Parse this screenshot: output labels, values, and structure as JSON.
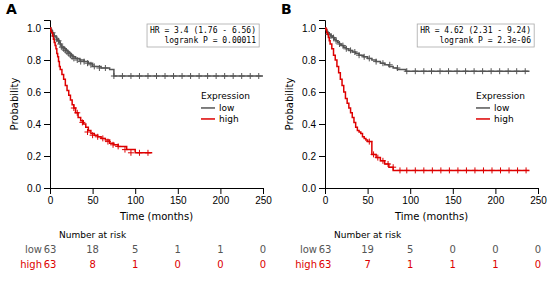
{
  "chart_data": [
    {
      "type": "step",
      "title": "A",
      "x_label": "Time (months)",
      "y_label": "Probability",
      "annotations": [
        "HR = 3.4 (1.76 - 6.56)",
        "logrank P = 0.00011"
      ],
      "legend": "right",
      "legend_title": "Expression",
      "grid": false,
      "xlim": [
        0,
        250
      ],
      "ylim": [
        0.0,
        1.05
      ],
      "xticks": [
        0,
        50,
        100,
        150,
        200,
        250
      ],
      "yticks": [
        {
          "value": 0.0,
          "label": "0.0"
        },
        0.2,
        0.4,
        0.6,
        0.8,
        {
          "value": 1.0,
          "label": "1.0"
        }
      ],
      "series": [
        {
          "name": "low",
          "color": "#555555",
          "x": [
            0,
            1,
            2,
            3,
            4,
            5,
            6,
            7,
            8,
            9,
            10,
            11,
            12,
            13,
            14,
            15,
            17,
            19,
            21,
            23,
            25,
            27,
            30,
            35,
            40,
            45,
            50,
            55,
            60,
            65,
            70,
            75,
            80,
            85,
            90,
            95,
            100,
            105,
            110,
            115,
            120,
            130,
            140,
            150,
            160,
            170,
            180,
            190,
            200,
            210,
            220,
            230,
            240,
            250
          ],
          "values": [
            1.0,
            0.99,
            0.98,
            0.97,
            0.96,
            0.95,
            0.95,
            0.94,
            0.93,
            0.92,
            0.92,
            0.91,
            0.9,
            0.89,
            0.88,
            0.88,
            0.87,
            0.86,
            0.85,
            0.84,
            0.83,
            0.82,
            0.81,
            0.8,
            0.79,
            0.78,
            0.76,
            0.76,
            0.75,
            0.75,
            0.74,
            0.7,
            0.7,
            0.7,
            0.7,
            0.7,
            0.7,
            0.7,
            0.7,
            0.7,
            0.7,
            0.7,
            0.7,
            0.7,
            0.7,
            0.7,
            0.7,
            0.7,
            0.7,
            0.7,
            0.7,
            0.7,
            0.7,
            0.7
          ],
          "censor_x": [
            3,
            5,
            8,
            10,
            12,
            14,
            16,
            18,
            20,
            22,
            24,
            26,
            28,
            32,
            36,
            40,
            44,
            48,
            52,
            58,
            65,
            75,
            85,
            95,
            105,
            115,
            125,
            135,
            145,
            155,
            165,
            175,
            185,
            195,
            205,
            215,
            225,
            235,
            245
          ],
          "censor_values": [
            0.97,
            0.95,
            0.93,
            0.92,
            0.9,
            0.88,
            0.87,
            0.86,
            0.85,
            0.84,
            0.83,
            0.82,
            0.81,
            0.8,
            0.79,
            0.79,
            0.78,
            0.77,
            0.76,
            0.75,
            0.75,
            0.7,
            0.7,
            0.7,
            0.7,
            0.7,
            0.7,
            0.7,
            0.7,
            0.7,
            0.7,
            0.7,
            0.7,
            0.7,
            0.7,
            0.7,
            0.7,
            0.7,
            0.7
          ]
        },
        {
          "name": "high",
          "color": "#dd0000",
          "x": [
            0,
            1,
            2,
            3,
            4,
            5,
            6,
            7,
            8,
            9,
            10,
            11,
            12,
            14,
            16,
            18,
            20,
            22,
            24,
            26,
            28,
            30,
            33,
            36,
            39,
            42,
            45,
            48,
            52,
            56,
            60,
            65,
            70,
            75,
            80,
            90,
            100,
            110,
            120
          ],
          "values": [
            1.0,
            0.98,
            0.97,
            0.95,
            0.93,
            0.91,
            0.89,
            0.87,
            0.84,
            0.82,
            0.79,
            0.76,
            0.74,
            0.71,
            0.68,
            0.64,
            0.61,
            0.58,
            0.55,
            0.52,
            0.5,
            0.47,
            0.44,
            0.42,
            0.4,
            0.38,
            0.36,
            0.34,
            0.33,
            0.32,
            0.31,
            0.3,
            0.28,
            0.27,
            0.26,
            0.24,
            0.22,
            0.22,
            0.22
          ],
          "censor_x": [
            28,
            32,
            38,
            44,
            50,
            56,
            62,
            68,
            74,
            80,
            88,
            95,
            105,
            115
          ],
          "censor_values": [
            0.5,
            0.47,
            0.41,
            0.35,
            0.33,
            0.32,
            0.31,
            0.29,
            0.27,
            0.26,
            0.24,
            0.22,
            0.22,
            0.22
          ]
        }
      ],
      "risk_table": {
        "title": "Number at risk",
        "x": [
          0,
          50,
          100,
          150,
          200,
          250
        ],
        "rows": [
          {
            "name": "low",
            "color": "#555555",
            "values": [
              63,
              18,
              5,
              1,
              1,
              0
            ]
          },
          {
            "name": "high",
            "color": "#dd0000",
            "values": [
              63,
              8,
              1,
              0,
              0,
              0
            ]
          }
        ]
      }
    },
    {
      "type": "step",
      "title": "B",
      "x_label": "Time (months)",
      "y_label": "Probability",
      "annotations": [
        "HR = 4.62 (2.31 - 9.24)",
        "logrank P = 2.3e-06"
      ],
      "legend": "right",
      "legend_title": "Expression",
      "grid": false,
      "xlim": [
        0,
        250
      ],
      "ylim": [
        0.0,
        1.05
      ],
      "xticks": [
        0,
        50,
        100,
        150,
        200,
        250
      ],
      "yticks": [
        {
          "value": 0.0,
          "label": "0.0"
        },
        0.2,
        0.4,
        0.6,
        0.8,
        {
          "value": 1.0,
          "label": "1.0"
        }
      ],
      "series": [
        {
          "name": "low",
          "color": "#555555",
          "x": [
            0,
            1,
            2,
            3,
            5,
            7,
            9,
            11,
            13,
            15,
            17,
            19,
            22,
            25,
            28,
            32,
            36,
            40,
            45,
            50,
            55,
            60,
            65,
            70,
            75,
            80,
            85,
            90,
            95,
            100,
            110,
            120,
            130,
            140,
            150,
            160,
            170,
            180,
            190,
            200,
            210,
            220,
            230,
            240
          ],
          "values": [
            1.0,
            0.99,
            0.98,
            0.97,
            0.96,
            0.95,
            0.94,
            0.93,
            0.92,
            0.91,
            0.9,
            0.89,
            0.88,
            0.87,
            0.86,
            0.85,
            0.84,
            0.83,
            0.82,
            0.81,
            0.8,
            0.79,
            0.78,
            0.77,
            0.76,
            0.75,
            0.74,
            0.74,
            0.73,
            0.73,
            0.73,
            0.73,
            0.73,
            0.73,
            0.73,
            0.73,
            0.73,
            0.73,
            0.73,
            0.73,
            0.73,
            0.73,
            0.73,
            0.73
          ],
          "censor_x": [
            4,
            7,
            10,
            13,
            17,
            21,
            25,
            30,
            35,
            40,
            46,
            52,
            60,
            68,
            76,
            85,
            96,
            106,
            116,
            125,
            135,
            145,
            155,
            165,
            175,
            185,
            195,
            205,
            215,
            225,
            235
          ],
          "censor_values": [
            0.96,
            0.95,
            0.94,
            0.92,
            0.9,
            0.89,
            0.87,
            0.86,
            0.85,
            0.83,
            0.82,
            0.81,
            0.79,
            0.78,
            0.77,
            0.75,
            0.73,
            0.73,
            0.73,
            0.73,
            0.73,
            0.73,
            0.73,
            0.73,
            0.73,
            0.73,
            0.73,
            0.73,
            0.73,
            0.73,
            0.73
          ]
        },
        {
          "name": "high",
          "color": "#dd0000",
          "x": [
            0,
            1,
            2,
            3,
            4,
            5,
            6,
            8,
            10,
            12,
            14,
            16,
            18,
            20,
            22,
            24,
            26,
            28,
            30,
            32,
            34,
            36,
            38,
            40,
            42,
            44,
            46,
            48,
            50,
            55,
            60,
            65,
            70,
            75,
            80,
            90,
            100,
            110,
            120,
            130,
            140,
            150,
            160,
            170,
            180,
            190,
            200,
            210,
            220,
            230,
            240
          ],
          "values": [
            1.0,
            0.99,
            0.97,
            0.96,
            0.94,
            0.92,
            0.9,
            0.87,
            0.83,
            0.8,
            0.76,
            0.72,
            0.68,
            0.64,
            0.6,
            0.56,
            0.53,
            0.5,
            0.47,
            0.44,
            0.41,
            0.38,
            0.36,
            0.35,
            0.34,
            0.32,
            0.31,
            0.3,
            0.29,
            0.21,
            0.19,
            0.17,
            0.15,
            0.13,
            0.11,
            0.11,
            0.11,
            0.11,
            0.11,
            0.11,
            0.11,
            0.11,
            0.11,
            0.11,
            0.11,
            0.11,
            0.11,
            0.11,
            0.11,
            0.11,
            0.11
          ],
          "censor_x": [
            52,
            57,
            62,
            68,
            74,
            80,
            88,
            96,
            106,
            116,
            126,
            136,
            146,
            156,
            166,
            176,
            186,
            196,
            206,
            216,
            226,
            236
          ],
          "censor_values": [
            0.29,
            0.21,
            0.19,
            0.17,
            0.15,
            0.13,
            0.11,
            0.11,
            0.11,
            0.11,
            0.11,
            0.11,
            0.11,
            0.11,
            0.11,
            0.11,
            0.11,
            0.11,
            0.11,
            0.11,
            0.11,
            0.11
          ]
        }
      ],
      "risk_table": {
        "title": "Number at risk",
        "x": [
          0,
          50,
          100,
          150,
          200,
          250
        ],
        "rows": [
          {
            "name": "low",
            "color": "#555555",
            "values": [
              63,
              19,
              5,
              0,
              0,
              0
            ]
          },
          {
            "name": "high",
            "color": "#dd0000",
            "values": [
              63,
              7,
              1,
              1,
              1,
              0
            ]
          }
        ]
      }
    }
  ]
}
